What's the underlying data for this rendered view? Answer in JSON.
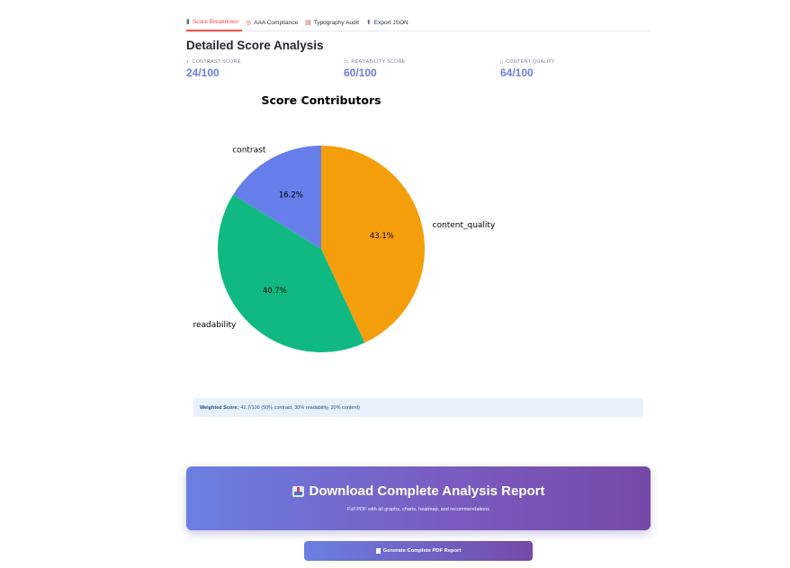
{
  "tabs": [
    {
      "label": "Score Breakdown",
      "icon": "bar-chart-icon",
      "active": true
    },
    {
      "label": "AAA Compliance",
      "icon": "target-icon",
      "active": false
    },
    {
      "label": "Typography Audit",
      "icon": "font-icon",
      "active": false
    },
    {
      "label": "Export JSON",
      "icon": "export-icon",
      "active": false
    }
  ],
  "section_title": "Detailed Score Analysis",
  "metrics": [
    {
      "label": "CONTRAST SCORE",
      "icon": "contrast-icon",
      "value": "24/100"
    },
    {
      "label": "READABILITY SCORE",
      "icon": "book-icon",
      "value": "60/100"
    },
    {
      "label": "CONTENT QUALITY",
      "icon": "document-icon",
      "value": "64/100"
    }
  ],
  "chart_data": {
    "type": "pie",
    "title": "Score Contributors",
    "slices": [
      {
        "label": "content_quality",
        "value": 43.1,
        "pct_label": "43.1%",
        "color": "#f59e0b"
      },
      {
        "label": "readability",
        "value": 40.7,
        "pct_label": "40.7%",
        "color": "#10b981"
      },
      {
        "label": "contrast",
        "value": 16.2,
        "pct_label": "16.2%",
        "color": "#667eea"
      }
    ]
  },
  "info": {
    "bold": "Weighted Score:",
    "text": "42.7/100 (50% contrast, 30% readability, 20% content)"
  },
  "banner": {
    "title": "Download Complete Analysis Report",
    "subtitle": "Full PDF with all graphs, charts, heatmap, and recommendations",
    "icon": "inbox-tray-icon"
  },
  "generate_button": {
    "label": "Generate Complete PDF Report",
    "icon": "document-icon"
  },
  "colors": {
    "accent": "#ff4b4b",
    "metric_value": "#6a7fde"
  }
}
